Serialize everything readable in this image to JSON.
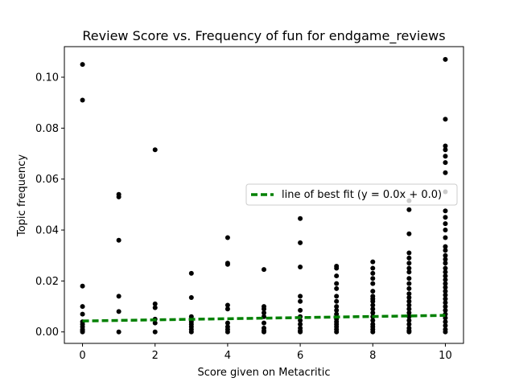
{
  "chart_data": {
    "type": "scatter",
    "title": "Review Score vs. Frequency of fun for endgame_reviews",
    "xlabel": "Score given on Metacritic",
    "ylabel": "Topic frequency",
    "xlim": [
      -0.5,
      10.5
    ],
    "ylim": [
      -0.0045,
      0.112
    ],
    "xticks": [
      0,
      2,
      4,
      6,
      8,
      10
    ],
    "yticks": [
      0.0,
      0.02,
      0.04,
      0.06,
      0.08,
      0.1
    ],
    "ytick_labels": [
      "0.00",
      "0.02",
      "0.04",
      "0.06",
      "0.08",
      "0.10"
    ],
    "grid": false,
    "legend": {
      "placement": "right",
      "entries": [
        "line of best fit (y = 0.0x + 0.0)"
      ]
    },
    "series": [
      {
        "points": [
          [
            0,
            0.105
          ],
          [
            0,
            0.091
          ],
          [
            0,
            0.018
          ],
          [
            0,
            0.01
          ],
          [
            0,
            0.007
          ],
          [
            0,
            0.004
          ],
          [
            0,
            0.003
          ],
          [
            0,
            0.002
          ],
          [
            0,
            0.001
          ],
          [
            0,
            0.0005
          ],
          [
            0,
            0.0
          ],
          [
            1,
            0.054
          ],
          [
            1,
            0.053
          ],
          [
            1,
            0.036
          ],
          [
            1,
            0.014
          ],
          [
            1,
            0.008
          ],
          [
            1,
            0.0
          ],
          [
            2,
            0.0715
          ],
          [
            2,
            0.011
          ],
          [
            2,
            0.0095
          ],
          [
            2,
            0.005
          ],
          [
            2,
            0.0035
          ],
          [
            2,
            0.0
          ],
          [
            3,
            0.023
          ],
          [
            3,
            0.0135
          ],
          [
            3,
            0.006
          ],
          [
            3,
            0.005
          ],
          [
            3,
            0.004
          ],
          [
            3,
            0.003
          ],
          [
            3,
            0.002
          ],
          [
            3,
            0.001
          ],
          [
            3,
            0.0
          ],
          [
            4,
            0.037
          ],
          [
            4,
            0.027
          ],
          [
            4,
            0.0265
          ],
          [
            4,
            0.0105
          ],
          [
            4,
            0.009
          ],
          [
            4,
            0.0035
          ],
          [
            4,
            0.002
          ],
          [
            4,
            0.001
          ],
          [
            4,
            0.0
          ],
          [
            5,
            0.0245
          ],
          [
            5,
            0.01
          ],
          [
            5,
            0.009
          ],
          [
            5,
            0.0075
          ],
          [
            5,
            0.006
          ],
          [
            5,
            0.0035
          ],
          [
            5,
            0.0015
          ],
          [
            5,
            0.0005
          ],
          [
            5,
            0.0
          ],
          [
            6,
            0.0445
          ],
          [
            6,
            0.035
          ],
          [
            6,
            0.0255
          ],
          [
            6,
            0.014
          ],
          [
            6,
            0.012
          ],
          [
            6,
            0.0085
          ],
          [
            6,
            0.006
          ],
          [
            6,
            0.0045
          ],
          [
            6,
            0.003
          ],
          [
            6,
            0.0015
          ],
          [
            6,
            0.0005
          ],
          [
            6,
            0.0
          ],
          [
            7,
            0.0258
          ],
          [
            7,
            0.025
          ],
          [
            7,
            0.022
          ],
          [
            7,
            0.019
          ],
          [
            7,
            0.017
          ],
          [
            7,
            0.014
          ],
          [
            7,
            0.012
          ],
          [
            7,
            0.01
          ],
          [
            7,
            0.0085
          ],
          [
            7,
            0.007
          ],
          [
            7,
            0.005
          ],
          [
            7,
            0.004
          ],
          [
            7,
            0.003
          ],
          [
            7,
            0.002
          ],
          [
            7,
            0.001
          ],
          [
            7,
            0.0
          ],
          [
            8,
            0.0275
          ],
          [
            8,
            0.025
          ],
          [
            8,
            0.023
          ],
          [
            8,
            0.021
          ],
          [
            8,
            0.019
          ],
          [
            8,
            0.016
          ],
          [
            8,
            0.014
          ],
          [
            8,
            0.013
          ],
          [
            8,
            0.012
          ],
          [
            8,
            0.0105
          ],
          [
            8,
            0.009
          ],
          [
            8,
            0.0075
          ],
          [
            8,
            0.006
          ],
          [
            8,
            0.0045
          ],
          [
            8,
            0.003
          ],
          [
            8,
            0.002
          ],
          [
            8,
            0.001
          ],
          [
            8,
            0.0
          ],
          [
            9,
            0.0515
          ],
          [
            9,
            0.048
          ],
          [
            9,
            0.0385
          ],
          [
            9,
            0.031
          ],
          [
            9,
            0.029
          ],
          [
            9,
            0.027
          ],
          [
            9,
            0.025
          ],
          [
            9,
            0.0235
          ],
          [
            9,
            0.021
          ],
          [
            9,
            0.019
          ],
          [
            9,
            0.017
          ],
          [
            9,
            0.015
          ],
          [
            9,
            0.0135
          ],
          [
            9,
            0.012
          ],
          [
            9,
            0.0105
          ],
          [
            9,
            0.009
          ],
          [
            9,
            0.0075
          ],
          [
            9,
            0.006
          ],
          [
            9,
            0.0045
          ],
          [
            9,
            0.003
          ],
          [
            9,
            0.0015
          ],
          [
            9,
            0.0005
          ],
          [
            9,
            0.0
          ],
          [
            10,
            0.107
          ],
          [
            10,
            0.0835
          ],
          [
            10,
            0.073
          ],
          [
            10,
            0.0715
          ],
          [
            10,
            0.069
          ],
          [
            10,
            0.0665
          ],
          [
            10,
            0.0625
          ],
          [
            10,
            0.055
          ],
          [
            10,
            0.0475
          ],
          [
            10,
            0.045
          ],
          [
            10,
            0.0425
          ],
          [
            10,
            0.04
          ],
          [
            10,
            0.037
          ],
          [
            10,
            0.0335
          ],
          [
            10,
            0.032
          ],
          [
            10,
            0.03
          ],
          [
            10,
            0.0285
          ],
          [
            10,
            0.027
          ],
          [
            10,
            0.025
          ],
          [
            10,
            0.0235
          ],
          [
            10,
            0.022
          ],
          [
            10,
            0.0205
          ],
          [
            10,
            0.019
          ],
          [
            10,
            0.0175
          ],
          [
            10,
            0.016
          ],
          [
            10,
            0.0145
          ],
          [
            10,
            0.013
          ],
          [
            10,
            0.0115
          ],
          [
            10,
            0.01
          ],
          [
            10,
            0.0085
          ],
          [
            10,
            0.007
          ],
          [
            10,
            0.0055
          ],
          [
            10,
            0.004
          ],
          [
            10,
            0.0025
          ],
          [
            10,
            0.001
          ],
          [
            10,
            0.0
          ]
        ],
        "color": "#000000"
      },
      {
        "name": "line of best fit (y = 0.0x + 0.0)",
        "type": "line",
        "x": [
          0,
          10
        ],
        "y": [
          0.0043,
          0.0065
        ],
        "color": "#008000",
        "style": "dashed"
      }
    ]
  }
}
